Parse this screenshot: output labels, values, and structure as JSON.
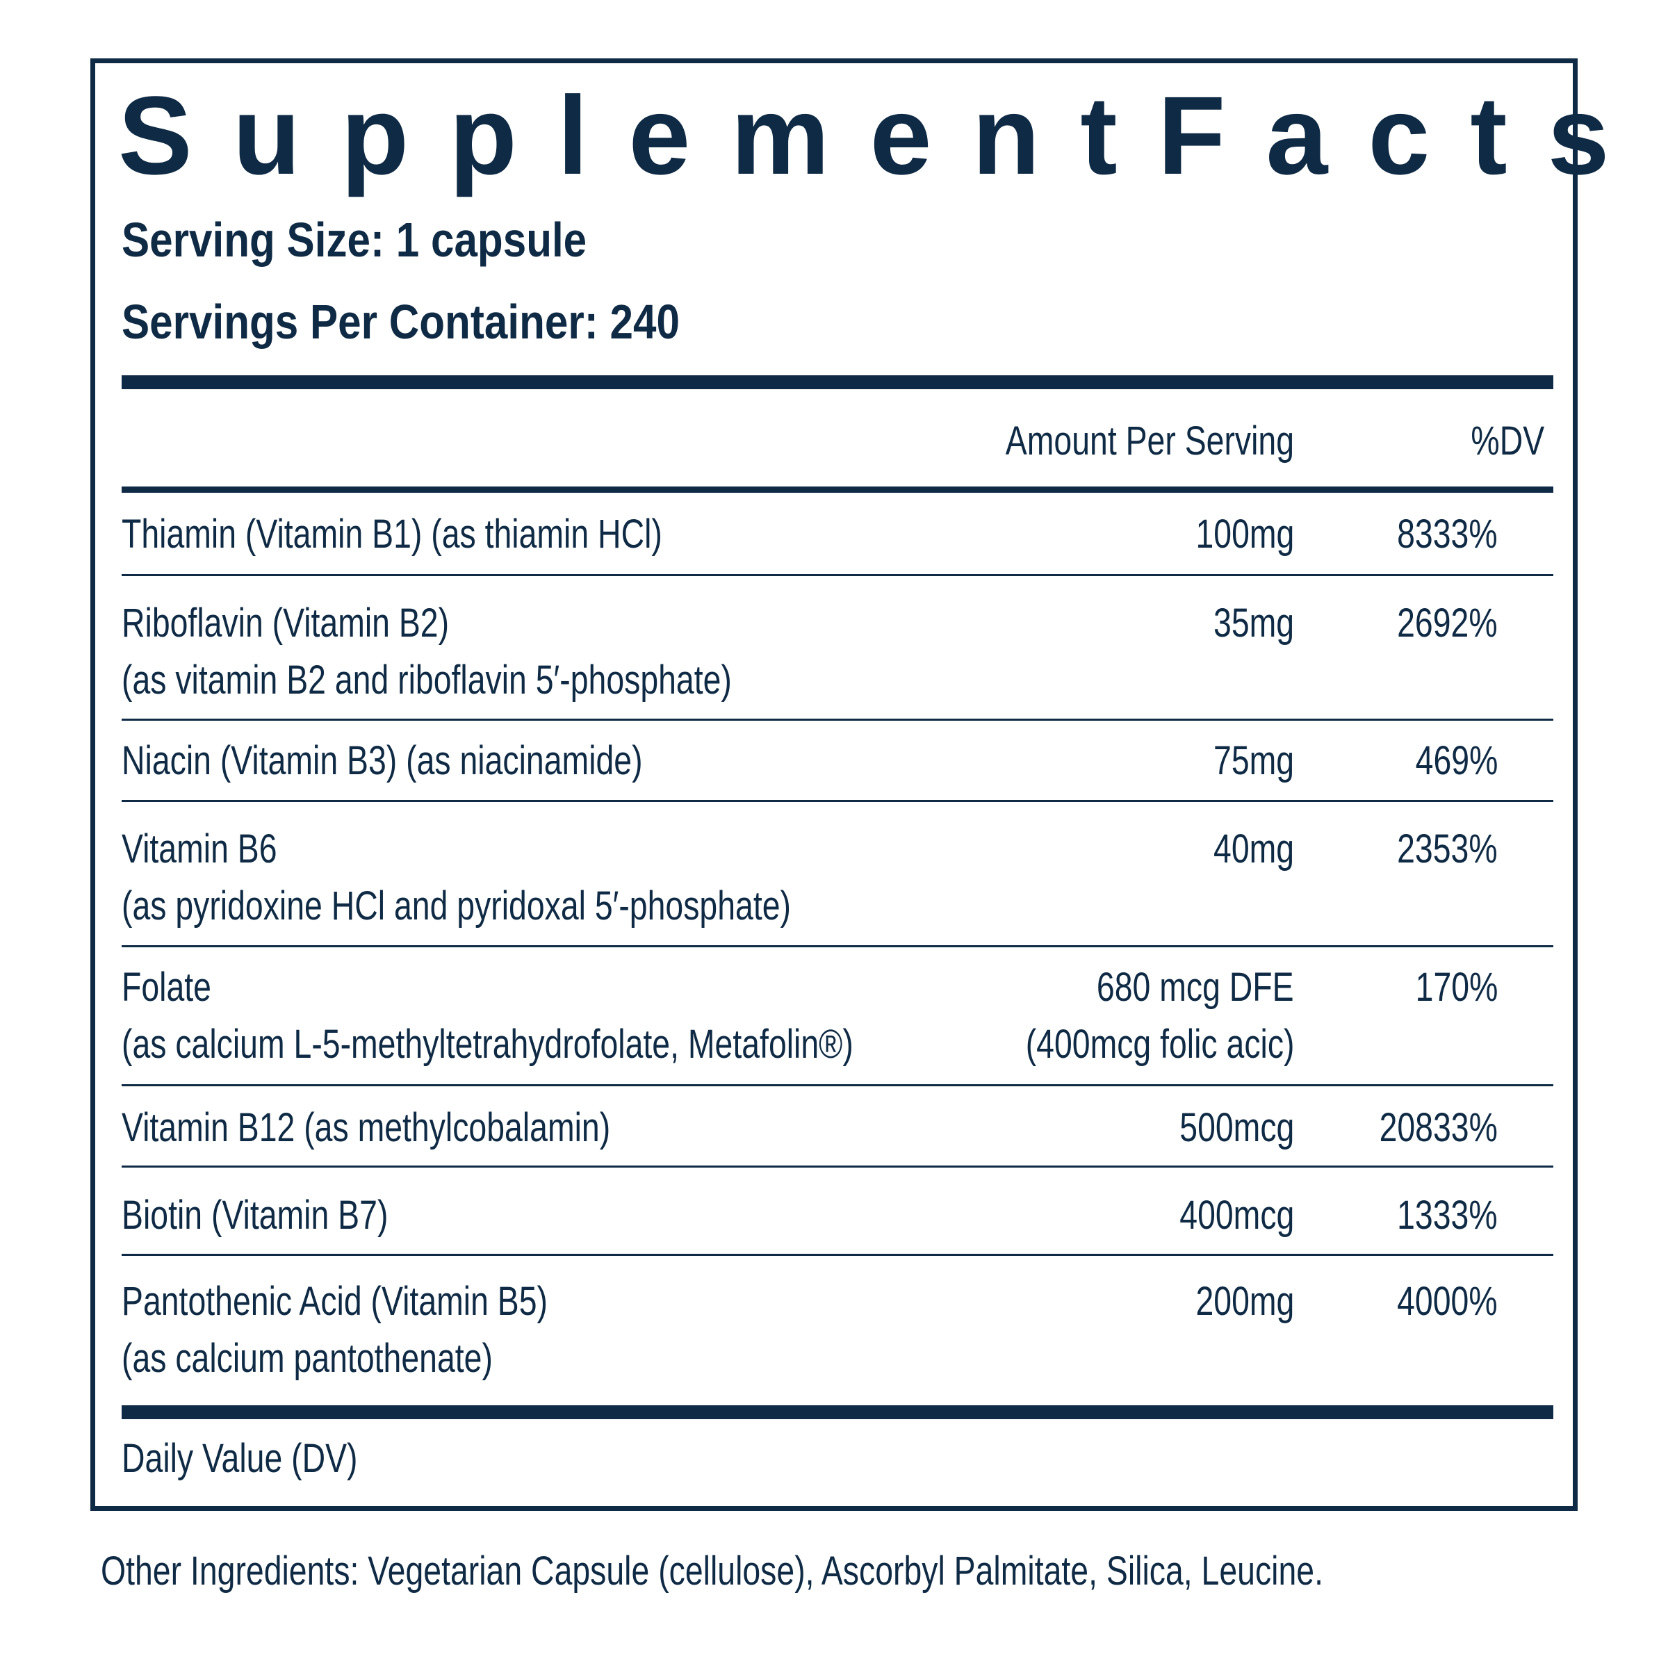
{
  "label": {
    "title_words": [
      "Supplement",
      "Facts"
    ],
    "serving_size": "Serving Size: 1 capsule",
    "servings_per_container": "Servings Per Container: 240",
    "columns": {
      "amount": "Amount Per Serving",
      "dv": "%DV"
    },
    "rows": [
      {
        "name": "Thiamin (Vitamin B1) (as thiamin HCl)",
        "amount": "100mg",
        "dv": "8333%"
      },
      {
        "name": "Riboflavin (Vitamin B2)",
        "name_line2": "(as vitamin B2 and riboflavin 5′-phosphate)",
        "amount": "35mg",
        "dv": "2692%"
      },
      {
        "name": "Niacin (Vitamin B3) (as niacinamide)",
        "amount": "75mg",
        "dv": "469%"
      },
      {
        "name": "Vitamin B6",
        "name_line2": "(as pyridoxine HCl and pyridoxal 5′-phosphate)",
        "amount": "40mg",
        "dv": "2353%"
      },
      {
        "name": "Folate",
        "name_line2": "(as calcium L-5-methyltetrahydrofolate, Metafolin®)",
        "amount": "680 mcg  DFE",
        "amount_line2": "(400mcg folic acic)",
        "dv": "170%"
      },
      {
        "name": "Vitamin B12 (as methylcobalamin)",
        "amount": "500mcg",
        "dv": "20833%"
      },
      {
        "name": "Biotin (Vitamin B7)",
        "amount": "400mcg",
        "dv": "1333%"
      },
      {
        "name": "Pantothenic Acid (Vitamin B5)",
        "name_line2": "(as calcium pantothenate)",
        "amount": "200mg",
        "dv": "4000%"
      }
    ],
    "footnote": "Daily Value (DV)"
  },
  "other_ingredients": "Other Ingredients: Vegetarian Capsule (cellulose), Ascorbyl Palmitate, Silica, Leucine.",
  "colors": {
    "ink": "#0f2a44",
    "background": "#ffffff"
  }
}
